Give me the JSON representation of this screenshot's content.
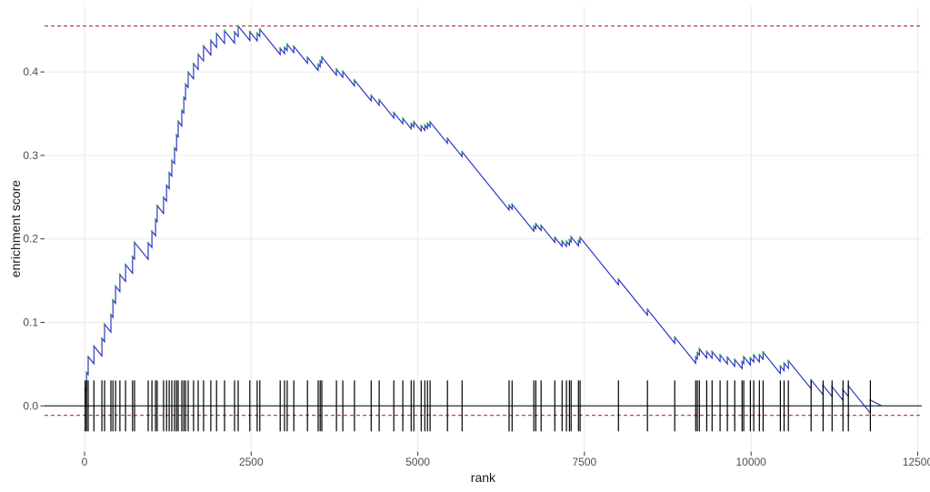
{
  "figure": {
    "title": "",
    "xlabel": "rank",
    "ylabel": "enrichment score"
  },
  "chart_data": {
    "type": "line",
    "subtype": "gsea-running-enrichment-score",
    "title": "",
    "xlabel": "rank",
    "ylabel": "enrichment score",
    "legend": "none",
    "grid": "major-only",
    "x_ticks": [
      {
        "value": 0,
        "label": "0"
      },
      {
        "value": 2500,
        "label": "2500"
      },
      {
        "value": 5000,
        "label": "5000"
      },
      {
        "value": 7500,
        "label": "7500"
      },
      {
        "value": 10000,
        "label": "10000"
      },
      {
        "value": 12500,
        "label": "12500"
      }
    ],
    "y_ticks": [
      {
        "value": 0.0,
        "label": "0.0"
      },
      {
        "value": 0.1,
        "label": "0.1"
      },
      {
        "value": 0.2,
        "label": "0.2"
      },
      {
        "value": 0.3,
        "label": "0.3"
      },
      {
        "value": 0.4,
        "label": "0.4"
      }
    ],
    "xlim": [
      -600,
      12560
    ],
    "ylim": [
      -0.0548,
      0.479
    ],
    "n_ranks": 11960,
    "max_es": 0.455,
    "min_es": -0.0113,
    "zero_es": 0,
    "es_peak_rank": 2300,
    "rug_half_height_es": 0.0305,
    "hit_ranks": [
      10,
      30,
      55,
      140,
      260,
      300,
      395,
      425,
      465,
      530,
      615,
      720,
      750,
      955,
      1010,
      1065,
      1090,
      1185,
      1230,
      1270,
      1310,
      1350,
      1380,
      1405,
      1460,
      1490,
      1515,
      1555,
      1635,
      1705,
      1785,
      1895,
      1980,
      2100,
      2250,
      2305,
      2480,
      2590,
      2630,
      2935,
      3000,
      3040,
      3140,
      3345,
      3505,
      3535,
      3560,
      3780,
      3875,
      4050,
      4300,
      4420,
      4640,
      4775,
      4900,
      4940,
      5050,
      5105,
      5145,
      5185,
      5445,
      5665,
      6370,
      6415,
      6740,
      6770,
      6850,
      7055,
      7165,
      7230,
      7275,
      7300,
      7410,
      7435,
      8010,
      8445,
      8855,
      9170,
      9195,
      9225,
      9335,
      9415,
      9535,
      9645,
      9755,
      9865,
      9890,
      9990,
      10040,
      10125,
      10180,
      10440,
      10495,
      10560,
      10900,
      11080,
      11215,
      11380,
      11460,
      11790
    ],
    "colors": {
      "curve": "#2026C0",
      "hit_points": "#3CB85C",
      "extreme_lines": "#B2303C",
      "zero_line": "#000000",
      "rug": "#000000",
      "gridline": "#EAEAEA",
      "tick_mark": "#333333",
      "tick_label": "#4D4D4D",
      "axis_title": "#1A1A1A",
      "background": "#FFFFFF"
    }
  }
}
